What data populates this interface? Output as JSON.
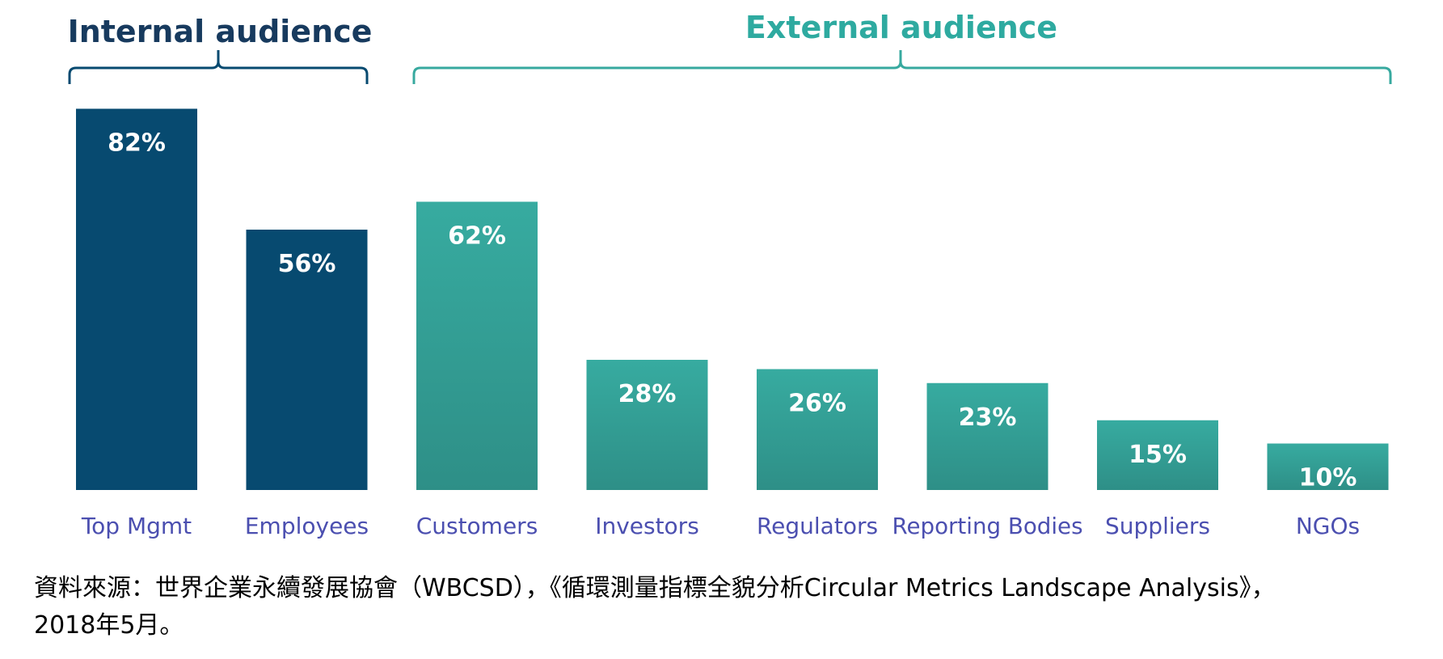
{
  "chart_data": {
    "type": "bar",
    "categories": [
      "Top Mgmt",
      "Employees",
      "Customers",
      "Investors",
      "Regulators",
      "Reporting Bodies",
      "Suppliers",
      "NGOs"
    ],
    "values": [
      82,
      56,
      62,
      28,
      26,
      23,
      15,
      10
    ],
    "value_labels": [
      "82%",
      "56%",
      "62%",
      "28%",
      "26%",
      "23%",
      "15%",
      "10%"
    ],
    "unit": "%",
    "groups": [
      {
        "name": "Internal audience",
        "categories": [
          "Top Mgmt",
          "Employees"
        ],
        "color": "#074a70"
      },
      {
        "name": "External audience",
        "categories": [
          "Customers",
          "Investors",
          "Regulators",
          "Reporting Bodies",
          "Suppliers",
          "NGOs"
        ],
        "color": "#37a99f"
      }
    ],
    "ylim": [
      0,
      100
    ],
    "grid": false,
    "legend": "none"
  },
  "colors": {
    "internal": "#074a70",
    "external": "#37a99f",
    "external_dark": "#2f8f87",
    "category_text": "#4b4fb0",
    "internal_title": "#173a5e",
    "external_title": "#2eaaa0"
  },
  "caption": {
    "line1": "資料來源：世界企業永續發展協會（WBCSD），《循環測量指標全貌分析Circular Metrics Landscape Analysis》，",
    "line2": "2018年5月。"
  }
}
